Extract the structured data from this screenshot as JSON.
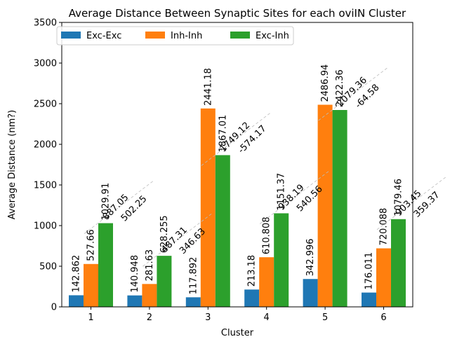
{
  "chart_data": {
    "type": "bar",
    "title": "Average Distance Between Synaptic Sites for each oviIN Cluster",
    "xlabel": "Cluster",
    "ylabel": "Average Distance (nm?)",
    "ylim": [
      0,
      3500
    ],
    "yticks": [
      0,
      500,
      1000,
      1500,
      2000,
      2500,
      3000,
      3500
    ],
    "categories": [
      "1",
      "2",
      "3",
      "4",
      "5",
      "6"
    ],
    "legend": "top-left",
    "grid": false,
    "series": [
      {
        "name": "Exc-Exc",
        "color": "#1f77b4",
        "values": [
          142.862,
          140.948,
          117.892,
          213.18,
          342.996,
          176.011
        ],
        "labels": [
          "142.862",
          "140.948",
          "117.892",
          "213.18",
          "342.996",
          "176.011"
        ]
      },
      {
        "name": "Inh-Inh",
        "color": "#ff7f0e",
        "values": [
          527.66,
          281.63,
          2441.18,
          610.808,
          2486.94,
          720.088
        ],
        "labels": [
          "527.66",
          "281.63",
          "2441.18",
          "610.808",
          "2486.94",
          "720.088"
        ]
      },
      {
        "name": "Exc-Inh",
        "color": "#2ca02c",
        "values": [
          1029.91,
          628.255,
          1867.01,
          1151.37,
          2422.36,
          1079.46
        ],
        "labels": [
          "1029.91",
          "628.255",
          "1867.01",
          "1151.37",
          "2422.36",
          "1079.46"
        ]
      }
    ],
    "annotations": [
      {
        "cluster": "1",
        "upper": "887.05",
        "lower": "502.25"
      },
      {
        "cluster": "2",
        "upper": "487.31",
        "lower": "346.63"
      },
      {
        "cluster": "3",
        "upper": "1749.12",
        "lower": "-574.17"
      },
      {
        "cluster": "4",
        "upper": "938.19",
        "lower": "540.56"
      },
      {
        "cluster": "5",
        "upper": "2079.36",
        "lower": "-64.58"
      },
      {
        "cluster": "6",
        "upper": "903.45",
        "lower": "359.37"
      }
    ]
  }
}
